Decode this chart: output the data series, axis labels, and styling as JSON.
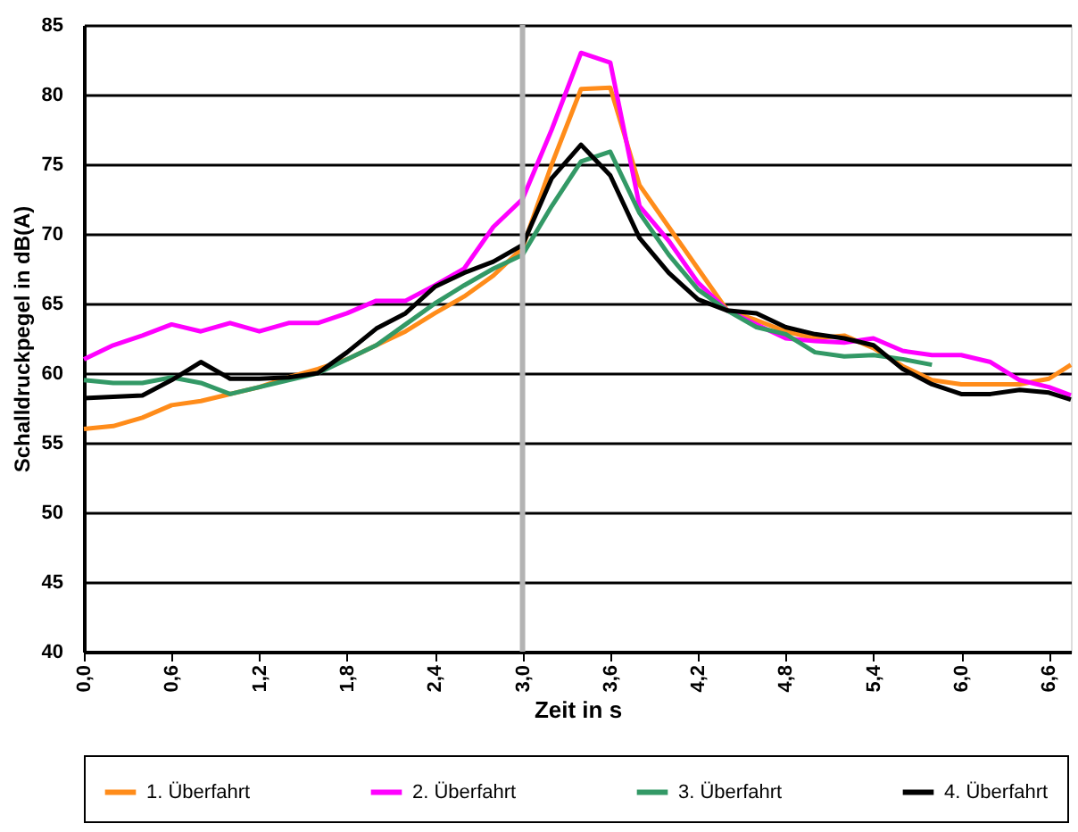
{
  "chart_data": {
    "type": "line",
    "xlabel": "Zeit in s",
    "ylabel": "Schalldruckpegel in dB(A)",
    "x": [
      0,
      0.2,
      0.4,
      0.6,
      0.8,
      1.0,
      1.2,
      1.4,
      1.6,
      1.8,
      2.0,
      2.2,
      2.4,
      2.6,
      2.8,
      3.0,
      3.2,
      3.4,
      3.6,
      3.8,
      4.0,
      4.2,
      4.4,
      4.6,
      4.8,
      5.0,
      5.2,
      5.4,
      5.6,
      5.8,
      6.0,
      6.2,
      6.4,
      6.6,
      6.75
    ],
    "series": [
      {
        "name": "1. Überfahrt",
        "color": "#ff8c1a",
        "values": [
          56,
          56.2,
          56.8,
          57.7,
          58,
          58.5,
          59,
          59.7,
          60.3,
          61,
          62,
          63,
          64.3,
          65.5,
          67,
          69,
          75,
          80.4,
          80.5,
          73.5,
          70.5,
          67.5,
          64.5,
          63.8,
          63,
          62.5,
          62.7,
          61.8,
          60.5,
          59.5,
          59.2,
          59.2,
          59.2,
          59.6,
          60.6
        ]
      },
      {
        "name": "2. Überfahrt",
        "color": "#ff00ff",
        "values": [
          61,
          62,
          62.7,
          63.5,
          63,
          63.6,
          63,
          63.6,
          63.6,
          64.3,
          65.2,
          65.2,
          66.3,
          67.5,
          70.5,
          72.5,
          77.5,
          83,
          82.3,
          72,
          69.5,
          66.5,
          64.5,
          63.5,
          62.5,
          62.3,
          62.2,
          62.5,
          61.6,
          61.3,
          61.3,
          60.8,
          59.5,
          59,
          58.4
        ]
      },
      {
        "name": "3. Überfahrt",
        "color": "#339966",
        "values": [
          59.5,
          59.3,
          59.3,
          59.7,
          59.3,
          58.5,
          59,
          59.5,
          60,
          61,
          62,
          63.5,
          65,
          66.3,
          67.5,
          68.5,
          72,
          75.2,
          75.9,
          71.5,
          68.5,
          66,
          64.5,
          63.3,
          62.8,
          61.5,
          61.2,
          61.3,
          61,
          60.6,
          null,
          null,
          null,
          null,
          null
        ]
      },
      {
        "name": "4. Überfahrt",
        "color": "#000000",
        "values": [
          58.2,
          58.3,
          58.4,
          59.5,
          60.8,
          59.6,
          59.6,
          59.7,
          60,
          61.5,
          63.2,
          64.3,
          66.2,
          67.2,
          68,
          69.2,
          74,
          76.4,
          74.2,
          69.7,
          67.2,
          65.3,
          64.5,
          64.3,
          63.3,
          62.8,
          62.5,
          62,
          60.3,
          59.2,
          58.5,
          58.5,
          58.8,
          58.6,
          58.1
        ]
      }
    ],
    "xlim": [
      0,
      6.75
    ],
    "xticks": [
      {
        "value": 0,
        "label": "0,0"
      },
      {
        "value": 0.6,
        "label": "0,6"
      },
      {
        "value": 1.2,
        "label": "1,2"
      },
      {
        "value": 1.8,
        "label": "1,8"
      },
      {
        "value": 2.4,
        "label": "2,4"
      },
      {
        "value": 3.0,
        "label": "3,0"
      },
      {
        "value": 3.6,
        "label": "3,6"
      },
      {
        "value": 4.2,
        "label": "4,2"
      },
      {
        "value": 4.8,
        "label": "4,8"
      },
      {
        "value": 5.4,
        "label": "5,4"
      },
      {
        "value": 6.0,
        "label": "6,0"
      },
      {
        "value": 6.6,
        "label": "6,6"
      }
    ],
    "ylim": [
      40,
      85
    ],
    "yticks": [
      40,
      45,
      50,
      55,
      60,
      65,
      70,
      75,
      80,
      85
    ],
    "ref_lines": [
      {
        "axis": "x",
        "value": 3.0,
        "color": "#b3b3b3"
      }
    ],
    "grid": "y",
    "legend": "bottom",
    "line_style": "solid",
    "marker": "none"
  }
}
